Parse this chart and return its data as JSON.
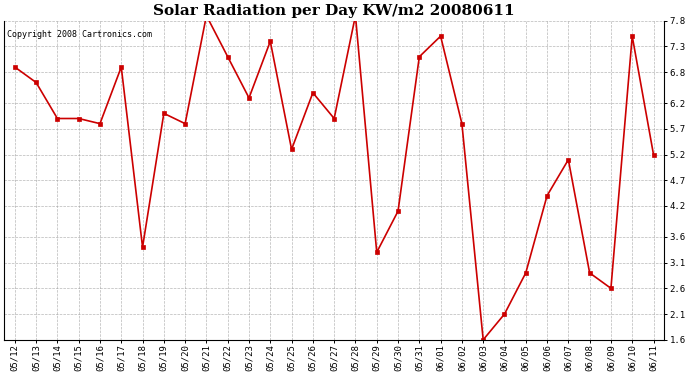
{
  "title": "Solar Radiation per Day KW/m2 20080611",
  "copyright_text": "Copyright 2008 Cartronics.com",
  "labels": [
    "05/12",
    "05/13",
    "05/14",
    "05/15",
    "05/16",
    "05/17",
    "05/18",
    "05/19",
    "05/20",
    "05/21",
    "05/22",
    "05/23",
    "05/24",
    "05/25",
    "05/26",
    "05/27",
    "05/28",
    "05/29",
    "05/30",
    "05/31",
    "06/01",
    "06/02",
    "06/03",
    "06/04",
    "06/05",
    "06/06",
    "06/07",
    "06/08",
    "06/09",
    "06/10",
    "06/11"
  ],
  "values": [
    6.9,
    6.6,
    5.9,
    5.9,
    5.8,
    6.9,
    3.4,
    6.0,
    5.8,
    7.9,
    7.1,
    6.3,
    7.4,
    5.3,
    6.4,
    5.9,
    7.9,
    3.3,
    4.1,
    7.1,
    7.5,
    5.8,
    1.6,
    2.1,
    2.9,
    4.4,
    5.1,
    2.9,
    2.6,
    7.5,
    5.2
  ],
  "line_color": "#cc0000",
  "marker_color": "#cc0000",
  "background_color": "#ffffff",
  "grid_color": "#999999",
  "ylim": [
    1.6,
    7.8
  ],
  "yticks": [
    1.6,
    2.1,
    2.6,
    3.1,
    3.6,
    4.2,
    4.7,
    5.2,
    5.7,
    6.2,
    6.8,
    7.3,
    7.8
  ],
  "title_fontsize": 11,
  "copyright_fontsize": 6,
  "tick_fontsize": 6.5,
  "ytick_fontsize": 6.5
}
